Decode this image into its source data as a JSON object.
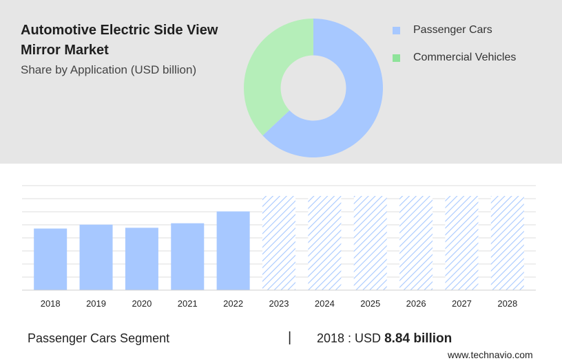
{
  "header": {
    "title": "Automotive Electric Side View Mirror Market",
    "subtitle": "Share by Application (USD billion)"
  },
  "legend": {
    "items": [
      {
        "label": "Passenger Cars",
        "color": "#a7c8ff"
      },
      {
        "label": "Commercial Vehicles",
        "color": "#8ee39a"
      }
    ]
  },
  "chart_data": [
    {
      "type": "pie",
      "title": "Share by Application (USD billion)",
      "labels": [
        "Passenger Cars",
        "Commercial Vehicles"
      ],
      "values": [
        63,
        37
      ],
      "colors": [
        "#a7c8ff",
        "#b5eeb9"
      ],
      "hole": 0.47
    },
    {
      "type": "bar",
      "title": "Passenger Cars Segment",
      "categories": [
        "2018",
        "2019",
        "2020",
        "2021",
        "2022",
        "2023",
        "2024",
        "2025",
        "2026",
        "2027",
        "2028"
      ],
      "values": [
        8.84,
        9.4,
        8.95,
        9.6,
        11.3,
        null,
        null,
        null,
        null,
        null,
        null
      ],
      "forecast_categories": [
        "2023",
        "2024",
        "2025",
        "2026",
        "2027",
        "2028"
      ],
      "ylim": [
        0,
        15
      ],
      "grid": true,
      "color": "#a7c8ff"
    }
  ],
  "footer": {
    "segment_label": "Passenger Cars Segment",
    "divider": "|",
    "value_prefix": "2018 : USD",
    "value_amount": "8.84 billion",
    "brand": "www.technavio.com"
  }
}
